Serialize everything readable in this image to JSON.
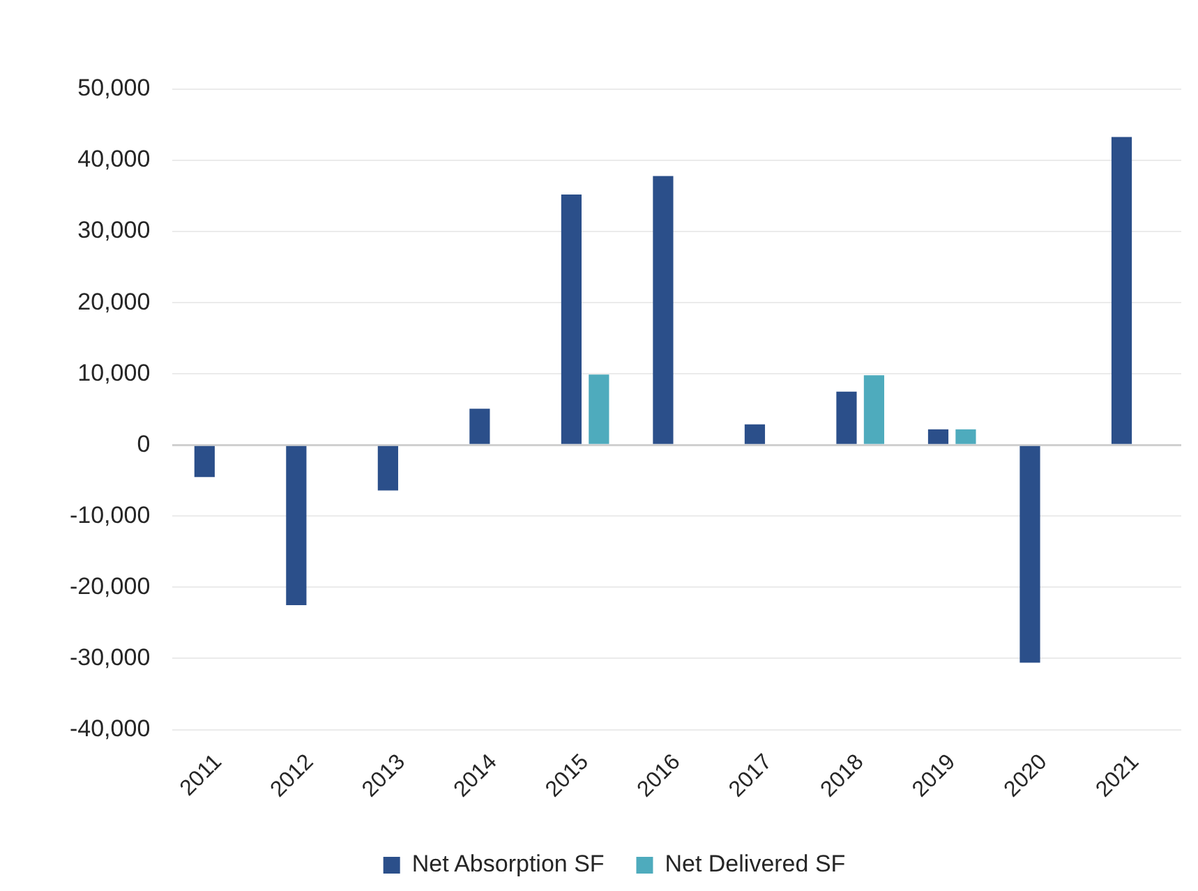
{
  "chart_data": {
    "type": "bar",
    "categories": [
      "2011",
      "2012",
      "2013",
      "2014",
      "2015",
      "2016",
      "2017",
      "2018",
      "2019",
      "2020",
      "2021"
    ],
    "series": [
      {
        "name": "Net Absorption SF",
        "color": "#2b4f8a",
        "values": [
          -4500,
          -22500,
          -6400,
          5100,
          35200,
          37800,
          2900,
          7500,
          2200,
          -30600,
          43300
        ]
      },
      {
        "name": "Net Delivered SF",
        "color": "#4eabbd",
        "values": [
          null,
          null,
          null,
          null,
          9900,
          null,
          null,
          9800,
          2200,
          null,
          null
        ]
      }
    ],
    "ylim": [
      -40000,
      50000
    ],
    "yticks": [
      {
        "value": -40000,
        "label": "-40,000"
      },
      {
        "value": -30000,
        "label": "-30,000"
      },
      {
        "value": -20000,
        "label": "-20,000"
      },
      {
        "value": -10000,
        "label": "-10,000"
      },
      0,
      {
        "value": 10000,
        "label": "10,000"
      },
      {
        "value": 20000,
        "label": "20,000"
      },
      {
        "value": 30000,
        "label": "30,000"
      },
      {
        "value": 40000,
        "label": "40,000"
      },
      {
        "value": 50000,
        "label": "50,000"
      }
    ],
    "grid": "y",
    "legend": "bottom"
  }
}
